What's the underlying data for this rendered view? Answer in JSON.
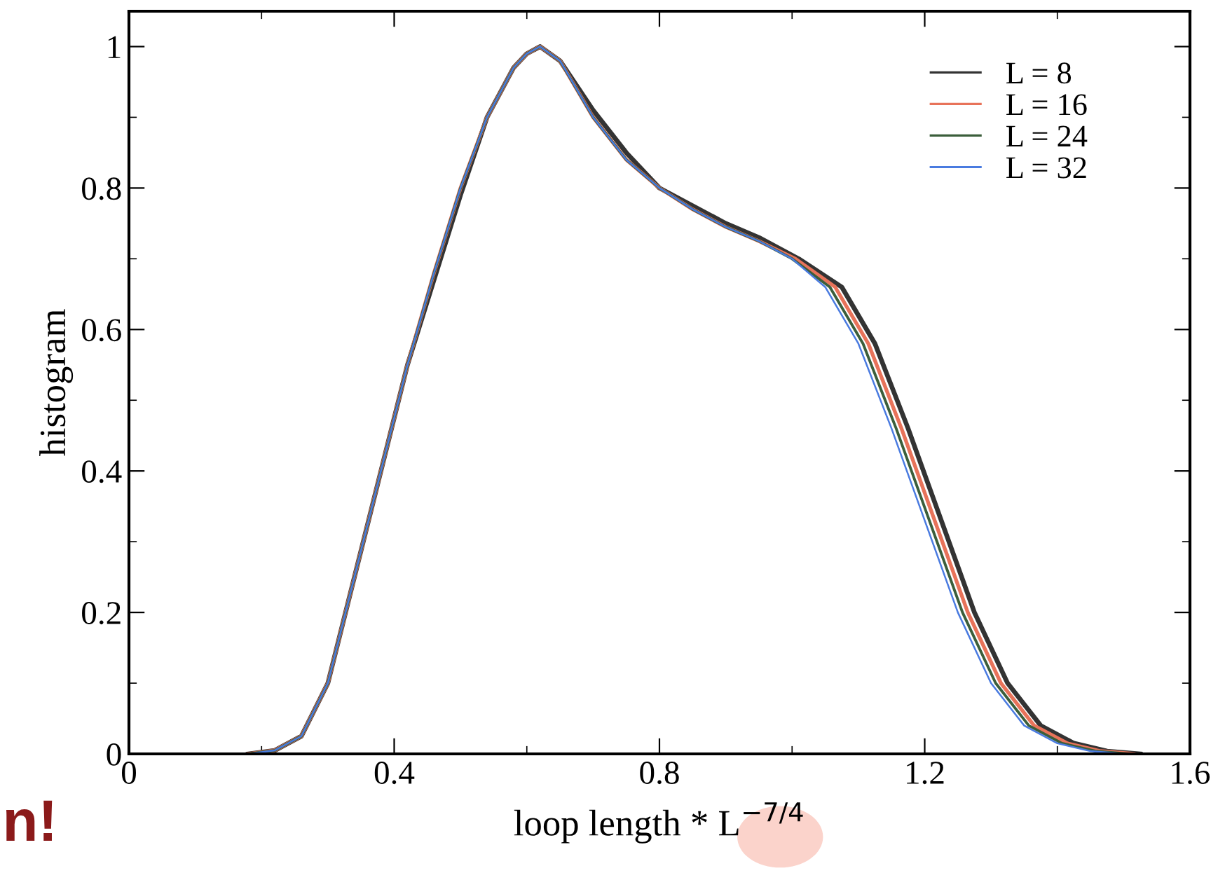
{
  "chart_data": {
    "type": "line",
    "xlabel": "loop length * L$^{−7/4}$",
    "ylabel": "histogram",
    "xlim": [
      0,
      1.6
    ],
    "xticks": [
      0,
      0.4,
      0.8,
      1.2,
      1.6
    ],
    "ylim": [
      0,
      1.05
    ],
    "yticks": [
      0,
      0.2,
      0.4,
      0.6,
      0.8,
      1
    ],
    "legend": "top right",
    "grid": false,
    "marker": "none",
    "line_style": "solid",
    "annotations": [
      "n!"
    ],
    "series": [
      {
        "name": "L = 8",
        "color": "#333333",
        "x": [
          0.18,
          0.22,
          0.26,
          0.3,
          0.34,
          0.38,
          0.42,
          0.46,
          0.5,
          0.54,
          0.58,
          0.6,
          0.62,
          0.65,
          0.7,
          0.75,
          0.8,
          0.85,
          0.9,
          0.95,
          1.01,
          1.075,
          1.125,
          1.175,
          1.225,
          1.275,
          1.325,
          1.375,
          1.425,
          1.475,
          1.525
        ],
        "values": [
          0,
          0.005,
          0.025,
          0.1,
          0.25,
          0.4,
          0.55,
          0.67,
          0.79,
          0.9,
          0.97,
          0.99,
          1.0,
          0.98,
          0.91,
          0.85,
          0.8,
          0.775,
          0.75,
          0.73,
          0.7,
          0.66,
          0.58,
          0.46,
          0.33,
          0.2,
          0.1,
          0.04,
          0.015,
          0.004,
          0
        ]
      },
      {
        "name": "L = 16",
        "color": "#e8735a",
        "x": [
          0.18,
          0.22,
          0.26,
          0.3,
          0.34,
          0.38,
          0.42,
          0.46,
          0.5,
          0.54,
          0.58,
          0.6,
          0.62,
          0.65,
          0.7,
          0.75,
          0.8,
          0.85,
          0.9,
          0.95,
          1.005,
          1.065,
          1.115,
          1.165,
          1.215,
          1.265,
          1.315,
          1.365,
          1.415,
          1.465,
          1.515
        ],
        "values": [
          0,
          0.005,
          0.025,
          0.1,
          0.25,
          0.4,
          0.55,
          0.68,
          0.8,
          0.9,
          0.97,
          0.99,
          1.0,
          0.98,
          0.9,
          0.84,
          0.8,
          0.77,
          0.745,
          0.725,
          0.7,
          0.66,
          0.58,
          0.46,
          0.33,
          0.2,
          0.1,
          0.04,
          0.015,
          0.004,
          0
        ]
      },
      {
        "name": "L = 24",
        "color": "#3b5e3b",
        "x": [
          0.18,
          0.22,
          0.26,
          0.3,
          0.34,
          0.38,
          0.42,
          0.46,
          0.5,
          0.54,
          0.58,
          0.6,
          0.62,
          0.65,
          0.7,
          0.75,
          0.8,
          0.85,
          0.9,
          0.95,
          1.0,
          1.057,
          1.107,
          1.157,
          1.207,
          1.257,
          1.307,
          1.357,
          1.407,
          1.457,
          1.507
        ],
        "values": [
          0,
          0.005,
          0.025,
          0.1,
          0.25,
          0.4,
          0.55,
          0.68,
          0.8,
          0.9,
          0.97,
          0.99,
          1.0,
          0.98,
          0.9,
          0.84,
          0.8,
          0.77,
          0.745,
          0.725,
          0.7,
          0.66,
          0.58,
          0.46,
          0.33,
          0.2,
          0.1,
          0.04,
          0.015,
          0.004,
          0
        ]
      },
      {
        "name": "L = 32",
        "color": "#4a7be0",
        "x": [
          0.18,
          0.22,
          0.26,
          0.3,
          0.34,
          0.38,
          0.42,
          0.46,
          0.5,
          0.54,
          0.58,
          0.6,
          0.62,
          0.65,
          0.7,
          0.75,
          0.8,
          0.85,
          0.9,
          0.95,
          1.0,
          1.05,
          1.1,
          1.15,
          1.2,
          1.25,
          1.3,
          1.35,
          1.4,
          1.45,
          1.5
        ],
        "values": [
          0,
          0.005,
          0.025,
          0.1,
          0.25,
          0.4,
          0.55,
          0.68,
          0.8,
          0.9,
          0.97,
          0.99,
          1.0,
          0.98,
          0.9,
          0.84,
          0.8,
          0.77,
          0.745,
          0.725,
          0.7,
          0.66,
          0.58,
          0.46,
          0.33,
          0.2,
          0.1,
          0.04,
          0.015,
          0.004,
          0
        ]
      }
    ]
  }
}
